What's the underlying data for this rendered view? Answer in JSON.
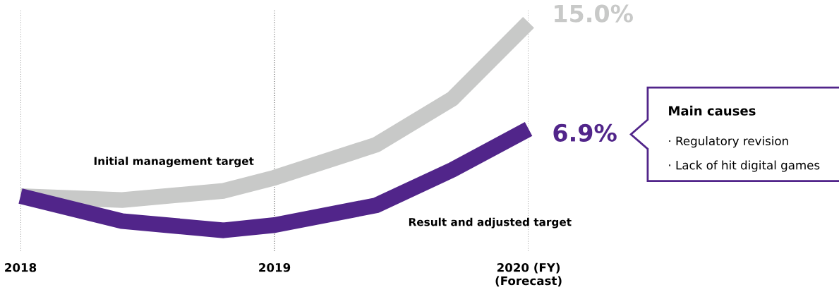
{
  "chart_data": {
    "type": "line",
    "grid": "x",
    "line_style": "solid",
    "xlim": [
      2018,
      2020
    ],
    "xticks": [
      {
        "value": 2018,
        "label": "2018"
      },
      {
        "value": 2019,
        "label": "2019"
      },
      {
        "value": 2020,
        "label": "2020 (FY)\n(Forecast)"
      }
    ],
    "series": [
      {
        "name": "Initial management target",
        "color": "#c8c9c8",
        "x": [
          2018,
          2018.4,
          2018.8,
          2019,
          2019.4,
          2019.7,
          2020
        ],
        "values": [
          1.8,
          1.5,
          2.2,
          3.2,
          5.7,
          9.2,
          15.0
        ],
        "value_labels": [
          null,
          null,
          null,
          null,
          null,
          null,
          "15.0%"
        ]
      },
      {
        "name": "Result and adjusted target",
        "color": "#51258a",
        "x": [
          2018,
          2018.4,
          2018.8,
          2019,
          2019.4,
          2019.7,
          2020
        ],
        "values": [
          1.8,
          -0.1,
          -0.8,
          -0.4,
          1.1,
          3.8,
          6.9
        ],
        "value_labels": [
          null,
          null,
          null,
          null,
          null,
          null,
          "6.9%"
        ]
      }
    ],
    "annotations": [
      "Main causes",
      "· Regulatory revision",
      "· Lack of hit digital games"
    ]
  }
}
